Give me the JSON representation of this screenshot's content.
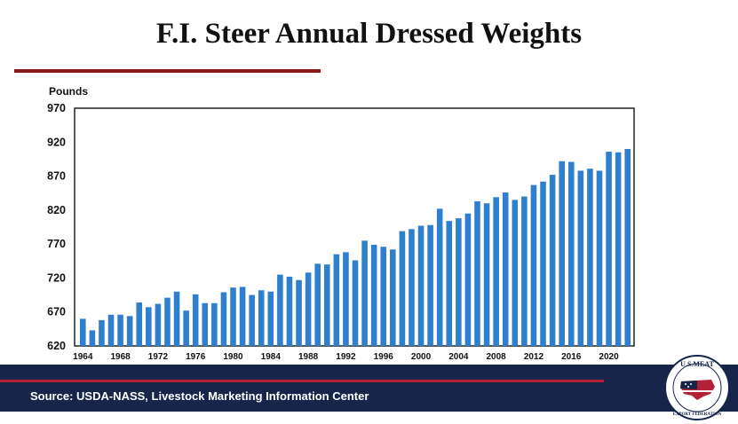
{
  "title": "F.I. Steer Annual Dressed Weights",
  "source": "Source: USDA-NASS, Livestock Marketing Information Center",
  "logo": {
    "top_text": "U.S.MEAT",
    "bottom_text": "EXPORT FEDERATION",
    "icon": "usa-flag-map-icon"
  },
  "colors": {
    "bar": "#2f7fcf",
    "accent_red": "#8b1a1a",
    "navy": "#17254a"
  },
  "chart_data": {
    "type": "bar",
    "ylabel": "Pounds",
    "ylim": [
      620,
      970
    ],
    "yticks": [
      620,
      670,
      720,
      770,
      820,
      870,
      920,
      970
    ],
    "xtick_labels": [
      "1964",
      "1968",
      "1972",
      "1976",
      "1980",
      "1984",
      "1988",
      "1992",
      "1996",
      "2000",
      "2004",
      "2008",
      "2012",
      "2016",
      "2020"
    ],
    "grid": false,
    "categories": [
      "1964",
      "1965",
      "1966",
      "1967",
      "1968",
      "1969",
      "1970",
      "1971",
      "1972",
      "1973",
      "1974",
      "1975",
      "1976",
      "1977",
      "1978",
      "1979",
      "1980",
      "1981",
      "1982",
      "1983",
      "1984",
      "1985",
      "1986",
      "1987",
      "1988",
      "1989",
      "1990",
      "1991",
      "1992",
      "1993",
      "1994",
      "1995",
      "1996",
      "1997",
      "1998",
      "1999",
      "2000",
      "2001",
      "2002",
      "2003",
      "2004",
      "2005",
      "2006",
      "2007",
      "2008",
      "2009",
      "2010",
      "2011",
      "2012",
      "2013",
      "2014",
      "2015",
      "2016",
      "2017",
      "2018",
      "2019",
      "2020",
      "2021",
      "2022"
    ],
    "values": [
      660,
      643,
      658,
      666,
      666,
      664,
      684,
      677,
      682,
      691,
      700,
      672,
      696,
      683,
      683,
      699,
      706,
      707,
      695,
      702,
      700,
      725,
      722,
      717,
      728,
      741,
      740,
      755,
      758,
      746,
      775,
      769,
      766,
      762,
      789,
      792,
      797,
      798,
      822,
      804,
      808,
      815,
      833,
      830,
      839,
      846,
      835,
      840,
      857,
      862,
      872,
      892,
      891,
      878,
      881,
      878,
      906,
      905,
      910
    ]
  }
}
